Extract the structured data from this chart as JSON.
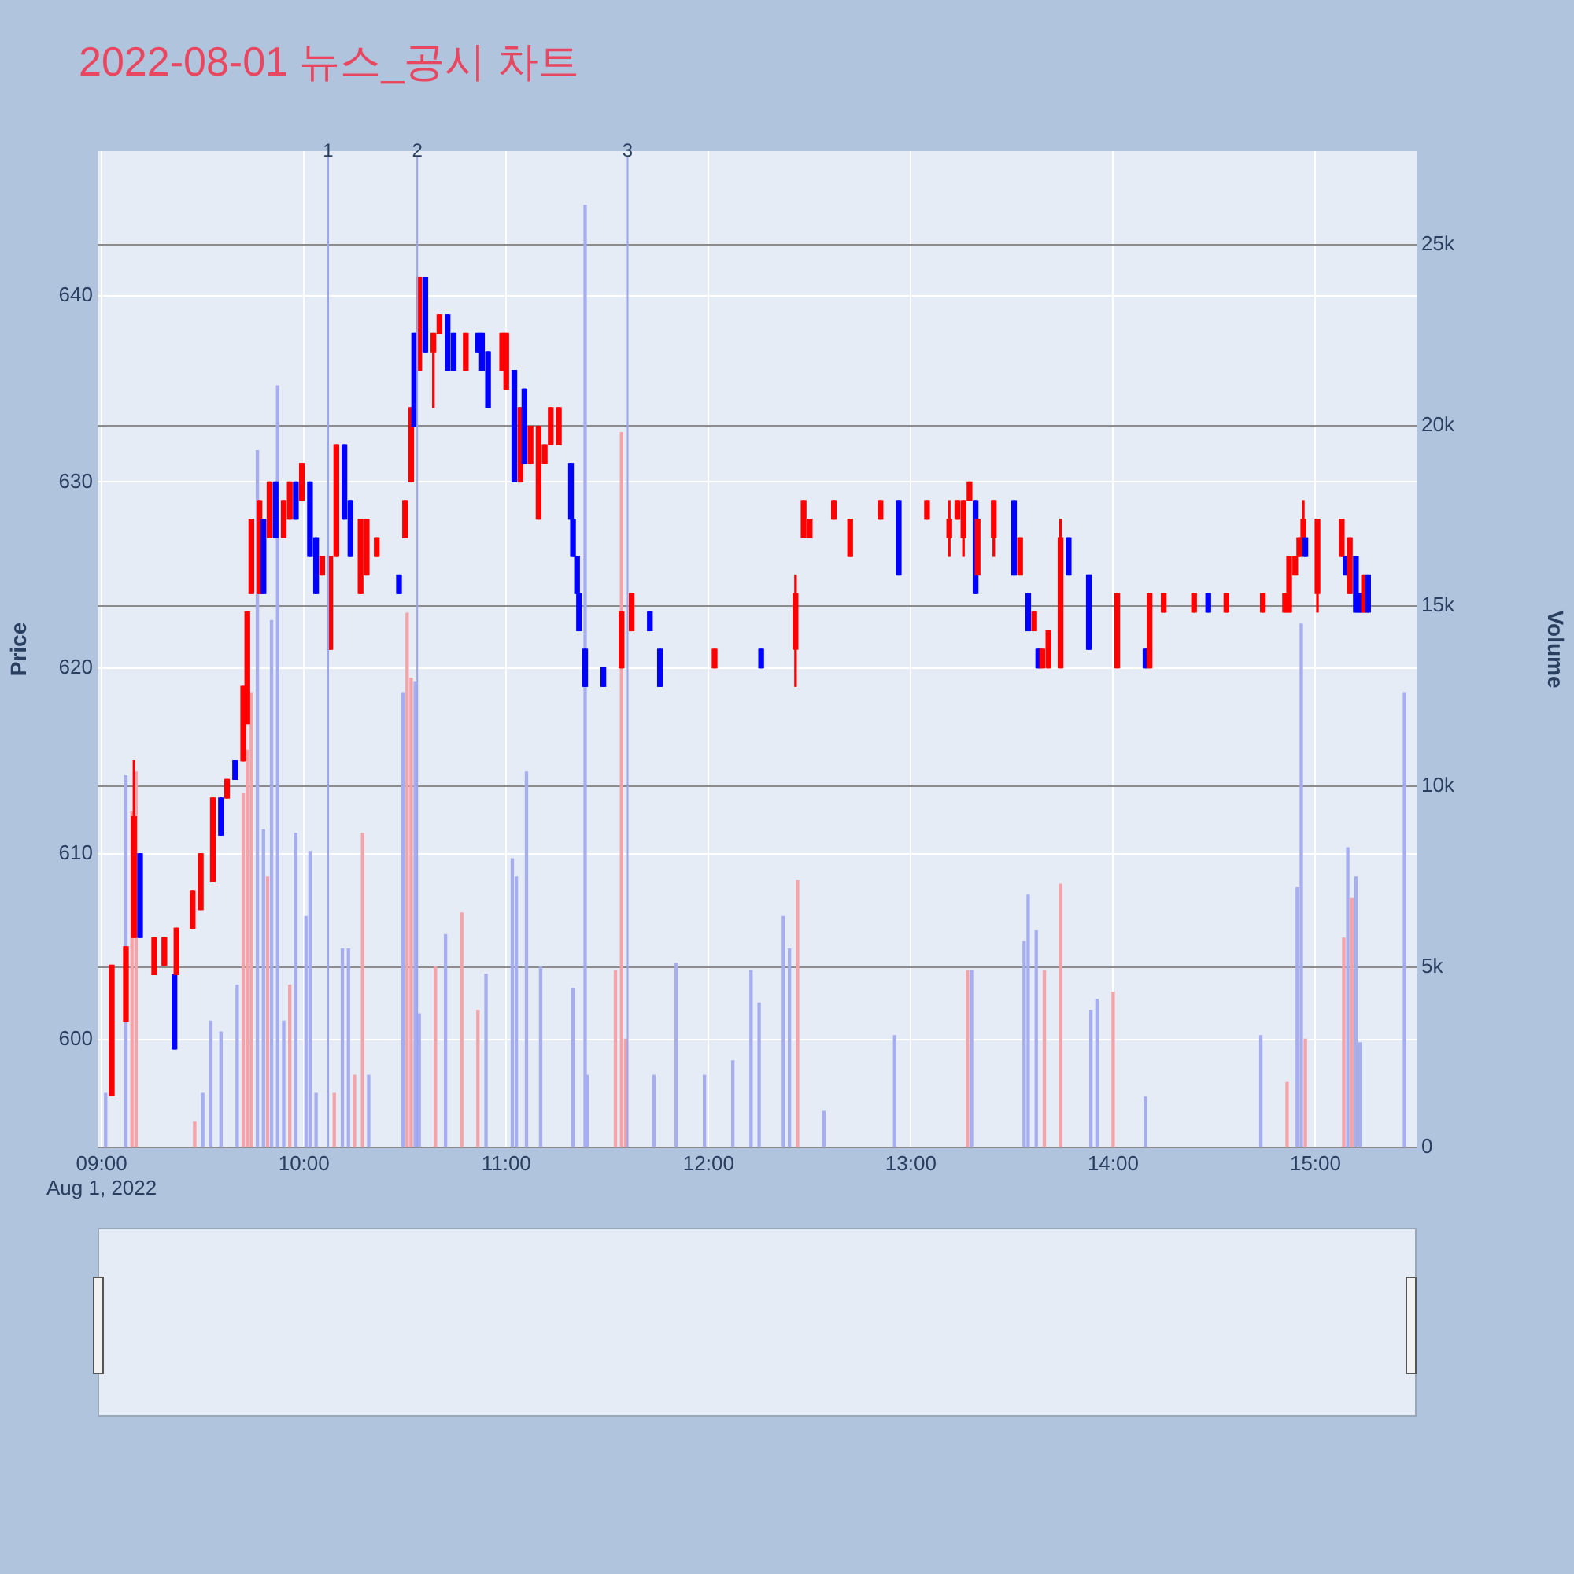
{
  "chart_data": {
    "type": "candlestick",
    "title": "2022-08-01 뉴스_공시 차트",
    "ylabel": "Price",
    "y2label": "Volume",
    "x": [
      9.05,
      9.12,
      9.16,
      9.19,
      9.26,
      9.31,
      9.36,
      9.37,
      9.45,
      9.49,
      9.55,
      9.59,
      9.62,
      9.66,
      9.7,
      9.72,
      9.74,
      9.78,
      9.8,
      9.83,
      9.86,
      9.9,
      9.93,
      9.96,
      9.99,
      10.03,
      10.06,
      10.09,
      10.13,
      10.16,
      10.2,
      10.23,
      10.28,
      10.31,
      10.36,
      10.47,
      10.5,
      10.53,
      10.545,
      10.57,
      10.6,
      10.64,
      10.67,
      10.71,
      10.74,
      10.8,
      10.86,
      10.88,
      10.91,
      10.98,
      11.0,
      11.04,
      11.07,
      11.09,
      11.12,
      11.16,
      11.19,
      11.22,
      11.26,
      11.32,
      11.33,
      11.35,
      11.36,
      11.39,
      11.48,
      11.57,
      11.62,
      11.71,
      11.76,
      12.03,
      12.26,
      12.43,
      12.47,
      12.5,
      12.62,
      12.7,
      12.85,
      12.94,
      13.08,
      13.19,
      13.23,
      13.26,
      13.29,
      13.32,
      13.33,
      13.41,
      13.51,
      13.54,
      13.58,
      13.61,
      13.63,
      13.65,
      13.68,
      13.74,
      13.78,
      13.88,
      14.02,
      14.16,
      14.18,
      14.25,
      14.4,
      14.47,
      14.56,
      14.74,
      14.85,
      14.87,
      14.9,
      14.92,
      14.94,
      14.95,
      15.01,
      15.13,
      15.15,
      15.17,
      15.2,
      15.22,
      15.24,
      15.26
    ],
    "ohlc": [
      [
        597,
        604,
        597,
        604
      ],
      [
        601,
        605,
        601,
        605
      ],
      [
        605.5,
        615,
        605.5,
        612
      ],
      [
        610,
        610,
        605.5,
        605.5
      ],
      [
        603.5,
        605.5,
        603.5,
        605.5
      ],
      [
        604,
        605.5,
        604,
        605.5
      ],
      [
        603.5,
        603.5,
        599.5,
        599.5
      ],
      [
        603.5,
        606,
        603.5,
        606
      ],
      [
        606,
        608,
        606,
        608
      ],
      [
        607,
        610,
        607,
        610
      ],
      [
        608.5,
        613,
        608.5,
        613
      ],
      [
        613,
        613,
        611,
        611
      ],
      [
        613,
        614,
        613,
        614
      ],
      [
        615,
        615,
        614,
        614
      ],
      [
        615,
        619,
        615,
        619
      ],
      [
        617,
        623,
        617,
        623
      ],
      [
        624,
        628,
        624,
        628
      ],
      [
        624,
        629,
        624,
        629
      ],
      [
        628,
        628,
        624,
        624
      ],
      [
        627,
        630,
        627,
        630
      ],
      [
        630,
        630,
        627,
        627
      ],
      [
        627,
        629,
        627,
        629
      ],
      [
        628,
        630,
        628,
        630
      ],
      [
        630,
        630,
        628,
        628
      ],
      [
        629,
        631,
        629,
        631
      ],
      [
        630,
        630,
        626,
        626
      ],
      [
        627,
        627,
        624,
        624
      ],
      [
        625,
        626,
        625,
        626
      ],
      [
        621,
        626,
        621,
        626
      ],
      [
        626,
        632,
        626,
        632
      ],
      [
        632,
        632,
        628,
        628
      ],
      [
        629,
        629,
        626,
        626
      ],
      [
        624,
        628,
        624,
        628
      ],
      [
        625,
        628,
        625,
        628
      ],
      [
        626,
        627,
        626,
        627
      ],
      [
        625,
        625,
        624,
        624
      ],
      [
        627,
        629,
        627,
        629
      ],
      [
        630,
        634,
        630,
        634
      ],
      [
        638,
        638,
        633,
        633
      ],
      [
        636,
        641,
        636,
        641
      ],
      [
        641,
        641,
        637,
        637
      ],
      [
        637,
        638,
        634,
        638
      ],
      [
        638,
        639,
        638,
        639
      ],
      [
        639,
        639,
        636,
        636
      ],
      [
        638,
        638,
        636,
        636
      ],
      [
        636,
        638,
        636,
        638
      ],
      [
        638,
        638,
        637,
        637
      ],
      [
        638,
        638,
        636,
        636
      ],
      [
        637,
        637,
        634,
        634
      ],
      [
        636,
        638,
        636,
        638
      ],
      [
        635,
        638,
        635,
        638
      ],
      [
        636,
        636,
        630,
        630
      ],
      [
        630,
        634,
        630,
        634
      ],
      [
        635,
        635,
        631,
        631
      ],
      [
        631,
        633,
        631,
        633
      ],
      [
        628,
        633,
        628,
        633
      ],
      [
        631,
        632,
        631,
        632
      ],
      [
        632,
        634,
        632,
        634
      ],
      [
        632,
        634,
        632,
        634
      ],
      [
        631,
        631,
        628,
        628
      ],
      [
        628,
        628,
        626,
        626
      ],
      [
        626,
        626,
        624,
        624
      ],
      [
        624,
        624,
        622,
        622
      ],
      [
        621,
        621,
        619,
        619
      ],
      [
        620,
        620,
        619,
        619
      ],
      [
        620,
        623,
        620,
        623
      ],
      [
        622,
        624,
        622,
        624
      ],
      [
        623,
        623,
        622,
        622
      ],
      [
        621,
        621,
        619,
        619
      ],
      [
        620,
        621,
        620,
        621
      ],
      [
        621,
        621,
        620,
        620
      ],
      [
        621,
        625,
        619,
        624
      ],
      [
        627,
        629,
        627,
        629
      ],
      [
        627,
        628,
        627,
        628
      ],
      [
        628,
        629,
        628,
        629
      ],
      [
        626,
        628,
        626,
        628
      ],
      [
        628,
        629,
        628,
        629
      ],
      [
        629,
        629,
        625,
        625
      ],
      [
        628,
        629,
        628,
        629
      ],
      [
        627,
        629,
        626,
        628
      ],
      [
        628,
        629,
        628,
        629
      ],
      [
        627,
        629,
        626,
        629
      ],
      [
        629,
        630,
        629,
        630
      ],
      [
        629,
        629,
        624,
        624
      ],
      [
        625,
        628,
        625,
        628
      ],
      [
        627,
        629,
        626,
        629
      ],
      [
        629,
        629,
        625,
        625
      ],
      [
        625,
        627,
        625,
        627
      ],
      [
        624,
        624,
        622,
        622
      ],
      [
        622,
        623,
        622,
        623
      ],
      [
        621,
        621,
        620,
        620
      ],
      [
        620,
        621,
        620,
        621
      ],
      [
        620,
        622,
        620,
        622
      ],
      [
        620,
        628,
        620,
        627
      ],
      [
        627,
        627,
        625,
        625
      ],
      [
        625,
        625,
        621,
        621
      ],
      [
        620,
        624,
        620,
        624
      ],
      [
        621,
        621,
        620,
        620
      ],
      [
        620,
        624,
        620,
        624
      ],
      [
        623,
        624,
        623,
        624
      ],
      [
        623,
        624,
        623,
        624
      ],
      [
        624,
        624,
        623,
        623
      ],
      [
        623,
        624,
        623,
        624
      ],
      [
        623,
        624,
        623,
        624
      ],
      [
        623,
        624,
        623,
        624
      ],
      [
        623,
        626,
        623,
        626
      ],
      [
        625,
        626,
        625,
        626
      ],
      [
        626,
        627,
        626,
        627
      ],
      [
        627,
        629,
        627,
        628
      ],
      [
        627,
        627,
        626,
        626
      ],
      [
        624,
        628,
        623,
        628
      ],
      [
        626,
        628,
        626,
        628
      ],
      [
        626,
        626,
        625,
        625
      ],
      [
        624,
        627,
        624,
        627
      ],
      [
        626,
        626,
        623,
        623
      ],
      [
        624,
        624,
        623,
        623
      ],
      [
        623,
        625,
        623,
        625
      ],
      [
        625,
        625,
        623,
        623
      ]
    ],
    "colors": [
      "#ff0000",
      "#ff0000",
      "#ff0000",
      "#0000ff",
      "#ff0000",
      "#ff0000",
      "#0000ff",
      "#ff0000",
      "#ff0000",
      "#ff0000",
      "#ff0000",
      "#0000ff",
      "#ff0000",
      "#0000ff",
      "#ff0000",
      "#ff0000",
      "#ff0000",
      "#ff0000",
      "#0000ff",
      "#ff0000",
      "#0000ff",
      "#ff0000",
      "#ff0000",
      "#0000ff",
      "#ff0000",
      "#0000ff",
      "#0000ff",
      "#ff0000",
      "#ff0000",
      "#ff0000",
      "#0000ff",
      "#0000ff",
      "#ff0000",
      "#ff0000",
      "#ff0000",
      "#0000ff",
      "#ff0000",
      "#ff0000",
      "#0000ff",
      "#ff0000",
      "#0000ff",
      "#ff0000",
      "#ff0000",
      "#0000ff",
      "#0000ff",
      "#ff0000",
      "#0000ff",
      "#0000ff",
      "#0000ff",
      "#ff0000",
      "#ff0000",
      "#0000ff",
      "#ff0000",
      "#0000ff",
      "#ff0000",
      "#ff0000",
      "#ff0000",
      "#ff0000",
      "#ff0000",
      "#0000ff",
      "#0000ff",
      "#0000ff",
      "#0000ff",
      "#0000ff",
      "#0000ff",
      "#ff0000",
      "#ff0000",
      "#0000ff",
      "#0000ff",
      "#ff0000",
      "#0000ff",
      "#ff0000",
      "#ff0000",
      "#ff0000",
      "#ff0000",
      "#ff0000",
      "#ff0000",
      "#0000ff",
      "#ff0000",
      "#ff0000",
      "#ff0000",
      "#ff0000",
      "#ff0000",
      "#0000ff",
      "#ff0000",
      "#ff0000",
      "#0000ff",
      "#ff0000",
      "#0000ff",
      "#ff0000",
      "#0000ff",
      "#ff0000",
      "#ff0000",
      "#ff0000",
      "#0000ff",
      "#0000ff",
      "#ff0000",
      "#0000ff",
      "#ff0000",
      "#ff0000",
      "#ff0000",
      "#0000ff",
      "#ff0000",
      "#ff0000",
      "#ff0000",
      "#ff0000",
      "#ff0000",
      "#ff0000",
      "#ff0000",
      "#0000ff",
      "#ff0000",
      "#ff0000",
      "#0000ff",
      "#ff0000",
      "#0000ff",
      "#0000ff",
      "#ff0000",
      "#0000ff"
    ],
    "series": [
      {
        "type": "bar",
        "axis": "y2",
        "x": [
          9.02,
          9.12,
          9.15,
          9.17,
          9.46,
          9.5,
          9.54,
          9.59,
          9.67,
          9.7,
          9.72,
          9.74,
          9.77,
          9.8,
          9.82,
          9.84,
          9.87,
          9.9,
          9.93,
          9.96,
          10.01,
          10.03,
          10.06,
          10.15,
          10.19,
          10.22,
          10.25,
          10.29,
          10.32,
          10.49,
          10.51,
          10.53,
          10.55,
          10.57,
          10.65,
          10.7,
          10.78,
          10.86,
          10.9,
          11.03,
          11.05,
          11.1,
          11.17,
          11.33,
          11.39,
          11.4,
          11.54,
          11.57,
          11.59,
          11.73,
          11.84,
          11.98,
          12.12,
          12.21,
          12.25,
          12.37,
          12.4,
          12.44,
          12.57,
          12.92,
          13.28,
          13.3,
          13.56,
          13.58,
          13.62,
          13.66,
          13.74,
          13.89,
          13.92,
          14.0,
          14.16,
          14.73,
          14.86,
          14.91,
          14.93,
          14.95,
          15.14,
          15.16,
          15.18,
          15.2,
          15.22,
          15.44
        ],
        "values": [
          1500,
          10300,
          9300,
          10400,
          700,
          1500,
          3500,
          3200,
          4500,
          9800,
          11000,
          12600,
          19300,
          8800,
          7500,
          14600,
          21100,
          3500,
          4500,
          8700,
          6400,
          8200,
          1500,
          1500,
          5500,
          5500,
          2000,
          8700,
          2000,
          12600,
          14800,
          13000,
          12900,
          3700,
          5000,
          5900,
          6500,
          3800,
          4800,
          8000,
          7500,
          10400,
          5000,
          4400,
          26100,
          2000,
          4900,
          19800,
          3000,
          2000,
          5100,
          2000,
          2400,
          4900,
          4000,
          6400,
          5500,
          7400,
          1000,
          3100,
          4900,
          4900,
          5700,
          7000,
          6000,
          4900,
          7300,
          3800,
          4100,
          4300,
          1400,
          3100,
          1800,
          7200,
          14500,
          3000,
          5800,
          8300,
          6900,
          7500,
          2900,
          12600
        ],
        "colors": [
          "#a6aef0",
          "#a6aef0",
          "#f4a3a8",
          "#f4a3a8",
          "#f4a3a8",
          "#a6aef0",
          "#a6aef0",
          "#a6aef0",
          "#a6aef0",
          "#f4a3a8",
          "#f4a3a8",
          "#f4a3a8",
          "#a6aef0",
          "#a6aef0",
          "#f4a3a8",
          "#a6aef0",
          "#a6aef0",
          "#a6aef0",
          "#f4a3a8",
          "#a6aef0",
          "#a6aef0",
          "#a6aef0",
          "#a6aef0",
          "#f4a3a8",
          "#a6aef0",
          "#a6aef0",
          "#f4a3a8",
          "#f4a3a8",
          "#a6aef0",
          "#a6aef0",
          "#f4a3a8",
          "#f4a3a8",
          "#a6aef0",
          "#a6aef0",
          "#f4a3a8",
          "#a6aef0",
          "#f4a3a8",
          "#f4a3a8",
          "#a6aef0",
          "#a6aef0",
          "#a6aef0",
          "#a6aef0",
          "#a6aef0",
          "#a6aef0",
          "#a6aef0",
          "#a6aef0",
          "#f4a3a8",
          "#f4a3a8",
          "#f4a3a8",
          "#a6aef0",
          "#a6aef0",
          "#a6aef0",
          "#a6aef0",
          "#a6aef0",
          "#a6aef0",
          "#a6aef0",
          "#a6aef0",
          "#f4a3a8",
          "#a6aef0",
          "#a6aef0",
          "#f4a3a8",
          "#a6aef0",
          "#a6aef0",
          "#a6aef0",
          "#a6aef0",
          "#f4a3a8",
          "#f4a3a8",
          "#a6aef0",
          "#a6aef0",
          "#f4a3a8",
          "#a6aef0",
          "#a6aef0",
          "#f4a3a8",
          "#a6aef0",
          "#a6aef0",
          "#f4a3a8",
          "#f4a3a8",
          "#a6aef0",
          "#f4a3a8",
          "#a6aef0",
          "#a6aef0",
          "#a6aef0"
        ]
      }
    ],
    "xlim": [
      8.98,
      15.5
    ],
    "xticks": [
      {
        "value": 9,
        "label": "09:00\nAug 1, 2022"
      },
      {
        "value": 10,
        "label": "10:00"
      },
      {
        "value": 11,
        "label": "11:00"
      },
      {
        "value": 12,
        "label": "12:00"
      },
      {
        "value": 13,
        "label": "13:00"
      },
      {
        "value": 14,
        "label": "14:00"
      },
      {
        "value": 15,
        "label": "15:00"
      }
    ],
    "ylim": [
      594.2,
      647.8
    ],
    "yticks": [
      600,
      610,
      620,
      630,
      640
    ],
    "y2lim": [
      0,
      27600
    ],
    "y2ticks": [
      0,
      {
        "value": 5000,
        "label": "5k"
      },
      {
        "value": 10000,
        "label": "10k"
      },
      {
        "value": 15000,
        "label": "15k"
      },
      {
        "value": 20000,
        "label": "20k"
      },
      {
        "value": 25000,
        "label": "25k"
      }
    ],
    "ref_lines": [
      {
        "axis": "x",
        "value": 10.12,
        "color": "#9aa5f0"
      },
      {
        "axis": "x",
        "value": 10.56,
        "color": "#9aa5f0"
      },
      {
        "axis": "x",
        "value": 11.6,
        "color": "#9aa5f0"
      }
    ],
    "annotations": [
      {
        "text": "1",
        "x": 10.12
      },
      {
        "text": "2",
        "x": 10.56
      },
      {
        "text": "3",
        "x": 11.6
      }
    ],
    "grid": true
  }
}
